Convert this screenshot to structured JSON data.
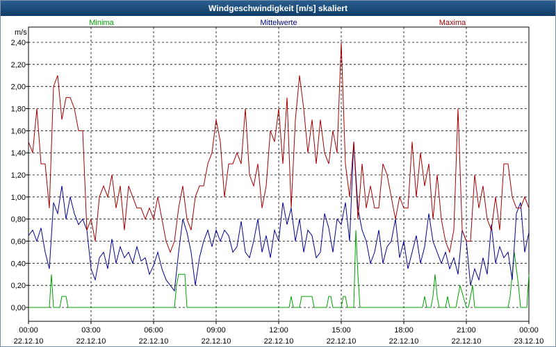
{
  "window": {
    "title": "Windgeschwindigkeit [m/s] skaliert"
  },
  "chart_data": {
    "type": "line",
    "title": "Windgeschwindigkeit [m/s] skaliert",
    "ylabel": "m/s",
    "ylim": [
      0,
      2.4
    ],
    "xlim": [
      0,
      24
    ],
    "grid": true,
    "y_ticks": [
      "0,00",
      "0,20",
      "0,40",
      "0,60",
      "0,80",
      "1,00",
      "1,20",
      "1,40",
      "1,60",
      "1,80",
      "2,00",
      "2,20",
      "2,40"
    ],
    "x_ticks": [
      {
        "time": "00:00",
        "date": "22.12.10"
      },
      {
        "time": "03:00",
        "date": "22.12.10"
      },
      {
        "time": "06:00",
        "date": "22.12.10"
      },
      {
        "time": "09:00",
        "date": "22.12.10"
      },
      {
        "time": "12:00",
        "date": "22.12.10"
      },
      {
        "time": "15:00",
        "date": "22.12.10"
      },
      {
        "time": "18:00",
        "date": "22.12.10"
      },
      {
        "time": "21:00",
        "date": "22.12.10"
      },
      {
        "time": "00:00",
        "date": "23.12.10"
      }
    ],
    "series": [
      {
        "name": "Minima",
        "color": "#00a000",
        "legend_position": "top-left",
        "x": [
          0,
          1.0,
          1.1,
          1.2,
          1.5,
          1.6,
          1.8,
          1.9,
          2.0,
          7.0,
          7.1,
          7.2,
          7.5,
          7.6,
          12.5,
          12.6,
          12.7,
          13.0,
          13.1,
          13.2,
          13.6,
          13.7,
          14.3,
          14.4,
          14.5,
          14.6,
          15.0,
          15.1,
          15.2,
          15.3,
          15.6,
          15.7,
          15.8,
          15.9,
          16.0,
          16.2,
          18.5,
          18.6,
          18.9,
          19.0,
          19.1,
          19.2,
          19.3,
          19.4,
          19.5,
          19.6,
          19.7,
          20.0,
          20.1,
          20.2,
          20.5,
          20.6,
          20.7,
          21.0,
          21.1,
          21.2,
          21.3,
          21.4,
          23.0,
          23.1,
          23.2,
          23.3,
          23.5,
          23.6,
          23.7,
          23.9,
          24.0
        ],
        "values": [
          0,
          0,
          0.3,
          0,
          0,
          0.1,
          0.1,
          0,
          0,
          0,
          0.2,
          0.3,
          0.3,
          0,
          0,
          0.1,
          0,
          0,
          0.1,
          0.1,
          0.1,
          0,
          0,
          0.1,
          0.1,
          0,
          0,
          0.1,
          0.1,
          0,
          0,
          0.7,
          0.3,
          0,
          0,
          0,
          0,
          0,
          0,
          0.1,
          0,
          0,
          0,
          0.1,
          0.3,
          0.1,
          0,
          0,
          0.1,
          0,
          0,
          0.1,
          0.2,
          0,
          0,
          0.1,
          0.2,
          0,
          0,
          0.1,
          0.3,
          0.5,
          0.2,
          0,
          0,
          0,
          0.3
        ]
      },
      {
        "name": "Mittelwerte",
        "color": "#00008b",
        "legend_position": "top-center",
        "x": [
          0,
          0.2,
          0.4,
          0.6,
          0.8,
          1.0,
          1.2,
          1.4,
          1.6,
          1.8,
          2.0,
          2.2,
          2.4,
          2.6,
          2.8,
          3.0,
          3.2,
          3.4,
          3.6,
          3.8,
          4.0,
          4.2,
          4.4,
          4.6,
          4.8,
          5.0,
          5.2,
          5.4,
          5.6,
          5.8,
          6.0,
          6.2,
          6.4,
          6.6,
          6.8,
          7.0,
          7.2,
          7.4,
          7.6,
          7.8,
          8.0,
          8.2,
          8.4,
          8.6,
          8.8,
          9.0,
          9.2,
          9.4,
          9.6,
          9.8,
          10.0,
          10.2,
          10.4,
          10.6,
          10.8,
          11.0,
          11.2,
          11.4,
          11.6,
          11.8,
          12.0,
          12.2,
          12.4,
          12.6,
          12.8,
          13.0,
          13.2,
          13.4,
          13.6,
          13.8,
          14.0,
          14.2,
          14.4,
          14.6,
          14.8,
          15.0,
          15.2,
          15.4,
          15.6,
          15.8,
          16.0,
          16.2,
          16.4,
          16.6,
          16.8,
          17.0,
          17.2,
          17.4,
          17.6,
          17.8,
          18.0,
          18.2,
          18.4,
          18.6,
          18.8,
          19.0,
          19.2,
          19.4,
          19.6,
          19.8,
          20.0,
          20.2,
          20.4,
          20.6,
          20.8,
          21.0,
          21.2,
          21.4,
          21.6,
          21.8,
          22.0,
          22.2,
          22.4,
          22.6,
          22.8,
          23.0,
          23.2,
          23.4,
          23.6,
          23.8,
          24.0
        ],
        "values": [
          0.65,
          0.7,
          0.6,
          0.72,
          0.5,
          0.35,
          0.95,
          0.85,
          1.1,
          0.8,
          1.0,
          0.85,
          0.75,
          0.8,
          0.7,
          0.35,
          0.25,
          0.45,
          0.5,
          0.35,
          0.62,
          0.4,
          0.55,
          0.45,
          0.5,
          0.4,
          0.55,
          0.42,
          0.45,
          0.3,
          0.38,
          0.5,
          0.35,
          0.25,
          0.2,
          0.15,
          0.5,
          0.8,
          0.68,
          0.5,
          0.2,
          0.45,
          0.6,
          0.7,
          0.55,
          0.7,
          0.6,
          0.7,
          0.65,
          0.5,
          0.55,
          0.78,
          0.5,
          0.45,
          0.6,
          0.8,
          0.5,
          0.65,
          0.45,
          0.7,
          0.6,
          0.95,
          0.75,
          0.9,
          0.6,
          0.8,
          0.5,
          0.7,
          0.65,
          0.45,
          0.5,
          0.85,
          0.72,
          0.5,
          0.8,
          0.75,
          0.95,
          0.6,
          1.5,
          0.9,
          0.7,
          0.6,
          0.4,
          0.5,
          0.7,
          0.4,
          0.55,
          0.6,
          0.8,
          0.45,
          0.6,
          0.35,
          0.5,
          0.65,
          0.4,
          0.55,
          0.85,
          0.6,
          0.5,
          0.4,
          0.5,
          0.35,
          0.45,
          0.3,
          0.7,
          0.6,
          0.2,
          0.35,
          0.25,
          0.45,
          0.3,
          0.75,
          0.4,
          0.55,
          0.45,
          0.5,
          0.25,
          0.85,
          0.95,
          0.5,
          0.68
        ]
      },
      {
        "name": "Maxima",
        "color": "#a00000",
        "legend_position": "top-right",
        "x": [
          0,
          0.2,
          0.4,
          0.6,
          0.8,
          1.0,
          1.2,
          1.4,
          1.6,
          1.8,
          2.0,
          2.2,
          2.4,
          2.6,
          2.8,
          3.0,
          3.2,
          3.4,
          3.6,
          3.8,
          4.0,
          4.2,
          4.4,
          4.6,
          4.8,
          5.0,
          5.2,
          5.4,
          5.6,
          5.8,
          6.0,
          6.2,
          6.4,
          6.6,
          6.8,
          7.0,
          7.2,
          7.4,
          7.6,
          7.8,
          8.0,
          8.2,
          8.4,
          8.6,
          8.8,
          9.0,
          9.2,
          9.4,
          9.6,
          9.8,
          10.0,
          10.2,
          10.4,
          10.6,
          10.8,
          11.0,
          11.2,
          11.4,
          11.6,
          11.8,
          12.0,
          12.2,
          12.4,
          12.6,
          12.8,
          13.0,
          13.2,
          13.4,
          13.6,
          13.8,
          14.0,
          14.2,
          14.4,
          14.6,
          14.8,
          15.0,
          15.2,
          15.4,
          15.6,
          15.8,
          16.0,
          16.2,
          16.4,
          16.6,
          16.8,
          17.0,
          17.2,
          17.4,
          17.6,
          17.8,
          18.0,
          18.2,
          18.4,
          18.6,
          18.8,
          19.0,
          19.2,
          19.4,
          19.6,
          19.8,
          20.0,
          20.2,
          20.4,
          20.6,
          20.8,
          21.0,
          21.2,
          21.4,
          21.6,
          21.8,
          22.0,
          22.2,
          22.4,
          22.6,
          22.8,
          23.0,
          23.2,
          23.4,
          23.6,
          23.8,
          24.0
        ],
        "values": [
          1.5,
          1.4,
          1.8,
          1.3,
          1.3,
          0.9,
          2.0,
          2.1,
          1.7,
          1.9,
          1.9,
          1.8,
          1.6,
          1.6,
          0.7,
          0.8,
          0.6,
          1.0,
          1.1,
          1.0,
          1.2,
          0.9,
          1.1,
          0.7,
          1.1,
          1.0,
          0.9,
          0.9,
          0.8,
          0.9,
          0.8,
          1.0,
          0.8,
          0.6,
          0.5,
          0.6,
          0.9,
          1.1,
          0.8,
          0.7,
          1.0,
          1.1,
          1.1,
          1.3,
          1.4,
          1.7,
          1.5,
          1.0,
          1.3,
          1.3,
          1.4,
          1.3,
          1.8,
          1.2,
          1.1,
          1.3,
          0.9,
          1.1,
          1.6,
          1.5,
          1.8,
          1.3,
          1.9,
          0.9,
          1.7,
          2.1,
          1.8,
          1.4,
          1.7,
          1.3,
          1.7,
          1.4,
          1.3,
          1.6,
          1.4,
          2.4,
          1.3,
          1.0,
          1.5,
          0.8,
          1.3,
          0.9,
          1.1,
          0.9,
          0.9,
          1.3,
          1.2,
          1.0,
          0.8,
          1.0,
          0.9,
          0.9,
          1.5,
          1.0,
          1.4,
          1.1,
          1.3,
          0.8,
          1.2,
          0.8,
          0.6,
          0.5,
          0.7,
          1.8,
          0.7,
          0.6,
          0.6,
          1.2,
          0.9,
          1.1,
          0.8,
          0.7,
          1.0,
          0.7,
          1.3,
          1.3,
          1.0,
          0.9,
          0.9,
          1.0,
          0.9
        ]
      }
    ]
  }
}
